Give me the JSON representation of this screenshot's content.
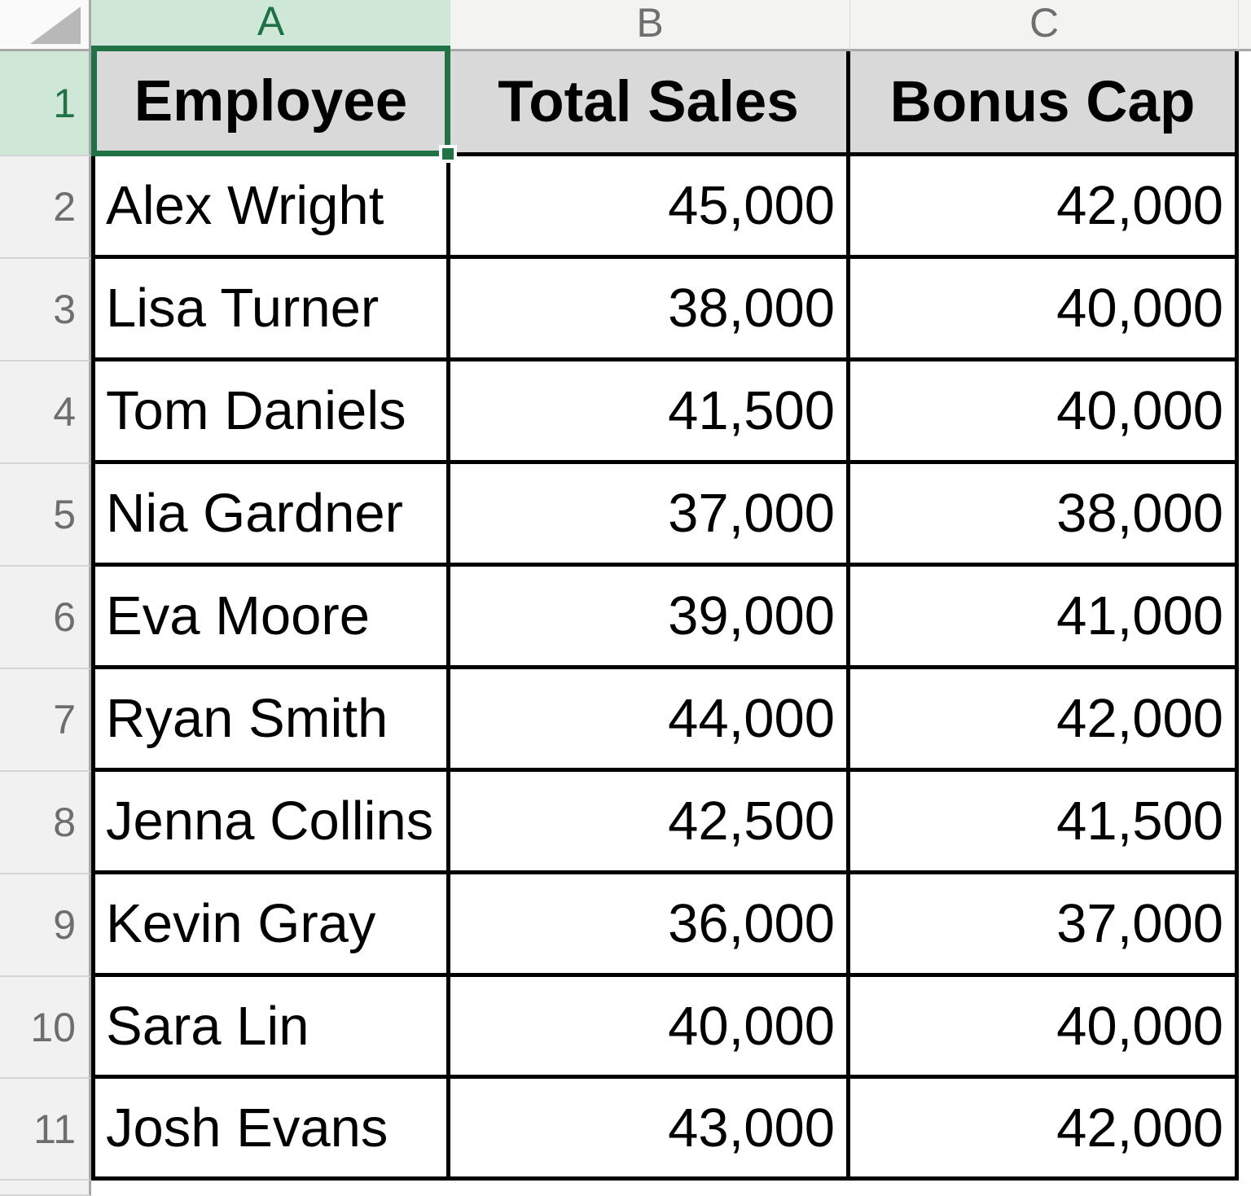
{
  "sheet": {
    "name_box_selection": "A1",
    "columns": [
      {
        "letter": "A",
        "selected": true
      },
      {
        "letter": "B",
        "selected": false
      },
      {
        "letter": "C",
        "selected": false
      }
    ],
    "header_row": {
      "number": "1",
      "employee_header": "Employee",
      "total_sales_header": "Total Sales",
      "bonus_cap_header": "Bonus Cap"
    },
    "rows": [
      {
        "number": "2",
        "employee": "Alex Wright",
        "total_sales": "45,000",
        "bonus_cap": "42,000"
      },
      {
        "number": "3",
        "employee": "Lisa Turner",
        "total_sales": "38,000",
        "bonus_cap": "40,000"
      },
      {
        "number": "4",
        "employee": "Tom Daniels",
        "total_sales": "41,500",
        "bonus_cap": "40,000"
      },
      {
        "number": "5",
        "employee": "Nia Gardner",
        "total_sales": "37,000",
        "bonus_cap": "38,000"
      },
      {
        "number": "6",
        "employee": "Eva Moore",
        "total_sales": "39,000",
        "bonus_cap": "41,000"
      },
      {
        "number": "7",
        "employee": "Ryan Smith",
        "total_sales": "44,000",
        "bonus_cap": "42,000"
      },
      {
        "number": "8",
        "employee": "Jenna Collins",
        "total_sales": "42,500",
        "bonus_cap": "41,500"
      },
      {
        "number": "9",
        "employee": "Kevin Gray",
        "total_sales": "36,000",
        "bonus_cap": "37,000"
      },
      {
        "number": "10",
        "employee": "Sara Lin",
        "total_sales": "40,000",
        "bonus_cap": "40,000"
      },
      {
        "number": "11",
        "employee": "Josh Evans",
        "total_sales": "43,000",
        "bonus_cap": "42,000"
      }
    ],
    "colors": {
      "excel_green": "#217346",
      "selected_header_tint": "#cfe7d6",
      "table_header_fill": "#d9d9d9",
      "row_header_fill": "#f1f1f1",
      "grid_border": "#000000"
    }
  }
}
